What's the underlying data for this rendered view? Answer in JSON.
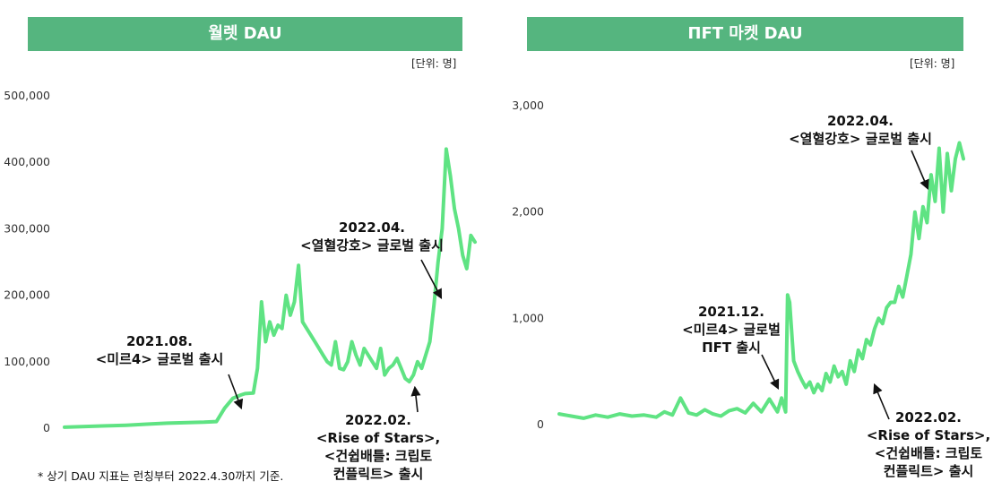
{
  "chart_data": [
    {
      "type": "line",
      "title": "월렛 DAU",
      "unit": "[단위: 명]",
      "ylim": [
        0,
        500000
      ],
      "y_ticks": [
        "500,000",
        "400,000",
        "300,000",
        "200,000",
        "100,000",
        "0"
      ],
      "y_tick_values": [
        500000,
        400000,
        300000,
        200000,
        100000,
        0
      ],
      "color": "#5fe383",
      "grid": false,
      "x_range": [
        0,
        100
      ],
      "series": [
        {
          "x": [
            0,
            5,
            10,
            15,
            20,
            25,
            30,
            34,
            37,
            39,
            41,
            43,
            44,
            46,
            47,
            48,
            49,
            50,
            51,
            52,
            53,
            54,
            55,
            56,
            57,
            58,
            59,
            60,
            61,
            62,
            63,
            64,
            65,
            66,
            67,
            68,
            69,
            70,
            71,
            72,
            73,
            74,
            75,
            76,
            77,
            78,
            79,
            80,
            81,
            82,
            83,
            84,
            85,
            86,
            87,
            88,
            89,
            90,
            91,
            92,
            93,
            94,
            95,
            96,
            97,
            98,
            99,
            100
          ],
          "values": [
            1500,
            2500,
            3500,
            4500,
            6000,
            7500,
            8500,
            9000,
            10000,
            30000,
            45000,
            50000,
            52000,
            53000,
            90000,
            190000,
            130000,
            160000,
            140000,
            155000,
            150000,
            200000,
            170000,
            190000,
            245000,
            160000,
            150000,
            140000,
            130000,
            120000,
            110000,
            100000,
            95000,
            130000,
            90000,
            88000,
            100000,
            130000,
            110000,
            95000,
            120000,
            110000,
            100000,
            90000,
            120000,
            80000,
            90000,
            95000,
            105000,
            90000,
            75000,
            70000,
            80000,
            100000,
            90000,
            110000,
            130000,
            185000,
            250000,
            300000,
            420000,
            380000,
            330000,
            300000,
            260000,
            240000,
            290000,
            280000
          ]
        }
      ],
      "annotations": [
        {
          "lines": [
            "2021.08.",
            "<미르4> 글로벌 출시"
          ]
        },
        {
          "lines": [
            "2022.02.",
            "<Rise of Stars>,",
            "<건쉽배틀: 크립토",
            "컨플릭트> 출시"
          ]
        },
        {
          "lines": [
            "2022.04.",
            "<열혈강호> 글로벌 출시"
          ]
        }
      ]
    },
    {
      "type": "line",
      "title": "ΠFT 마켓 DAU",
      "unit": "[단위: 명]",
      "ylim": [
        0,
        3000
      ],
      "y_ticks": [
        "3,000",
        "2,000",
        "1,000",
        "0"
      ],
      "y_tick_values": [
        3000,
        2000,
        1000,
        0
      ],
      "color": "#5fe383",
      "grid": false,
      "x_range": [
        0,
        100
      ],
      "series": [
        {
          "x": [
            0,
            3,
            6,
            9,
            12,
            15,
            18,
            21,
            24,
            26,
            28,
            30,
            32,
            34,
            36,
            38,
            40,
            42,
            44,
            46,
            48,
            50,
            52,
            54,
            55,
            56,
            56.5,
            57,
            58,
            59,
            60,
            61,
            62,
            63,
            64,
            65,
            66,
            67,
            68,
            69,
            70,
            71,
            72,
            73,
            74,
            75,
            76,
            77,
            78,
            79,
            80,
            81,
            82,
            83,
            84,
            85,
            86,
            87,
            88,
            89,
            90,
            91,
            92,
            93,
            94,
            95,
            96,
            97,
            98,
            99,
            100
          ],
          "values": [
            100,
            80,
            60,
            90,
            70,
            100,
            80,
            90,
            70,
            120,
            90,
            250,
            110,
            90,
            140,
            100,
            80,
            130,
            150,
            110,
            200,
            120,
            240,
            120,
            250,
            120,
            1220,
            1150,
            600,
            500,
            420,
            350,
            400,
            300,
            380,
            320,
            480,
            400,
            550,
            450,
            500,
            380,
            600,
            500,
            700,
            620,
            800,
            750,
            900,
            1000,
            950,
            1100,
            1150,
            1150,
            1300,
            1200,
            1400,
            1600,
            2000,
            1750,
            2050,
            1900,
            2350,
            2100,
            2600,
            2000,
            2550,
            2200,
            2500,
            2650,
            2500
          ]
        }
      ],
      "annotations": [
        {
          "lines": [
            "2021.12.",
            "<미르4> 글로벌",
            "ΠFT 출시"
          ]
        },
        {
          "lines": [
            "2022.04.",
            "<열혈강호> 글로벌 출시"
          ]
        },
        {
          "lines": [
            "2022.02.",
            "<Rise of Stars>,",
            "<건쉽배틀: 크립토",
            "컨플릭트> 출시"
          ]
        }
      ]
    }
  ],
  "footnote": "* 상기 DAU 지표는 런칭부터 2022.4.30까지 기준."
}
